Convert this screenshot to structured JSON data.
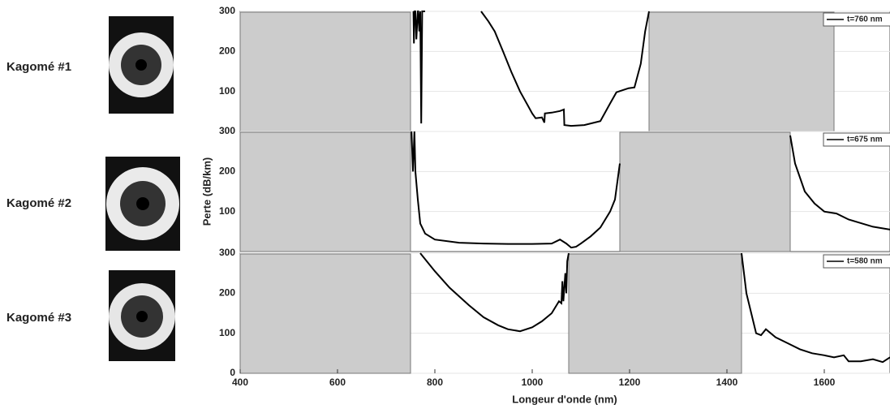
{
  "chart_data": [
    {
      "type": "line",
      "fiber_label": "Kagomé #1",
      "xlim": [
        400,
        1735
      ],
      "ylim": [
        0,
        300
      ],
      "yticks": [
        100,
        200,
        300
      ],
      "shaded_regions": [
        [
          400,
          750
        ],
        [
          1240,
          1620
        ]
      ],
      "series": [
        {
          "name": "t=760 nm",
          "color": "#000000",
          "x": [
            756,
            757,
            758,
            760,
            762,
            765,
            766,
            768,
            770,
            772,
            774,
            776,
            780,
            null,
            895,
            910,
            923,
            940,
            957,
            975,
            990,
            1000,
            1007,
            1020,
            1025,
            1026,
            1040,
            1057,
            1065,
            1066,
            1080,
            1107,
            1140,
            1160,
            1173,
            1198,
            1210,
            1223,
            1232,
            1240
          ],
          "values": [
            300,
            220,
            300,
            300,
            230,
            300,
            300,
            250,
            300,
            20,
            300,
            300,
            300,
            null,
            300,
            275,
            250,
            200,
            149,
            100,
            67,
            45,
            33,
            35,
            22,
            45,
            47,
            51,
            55,
            16,
            14,
            16,
            26,
            70,
            98,
            108,
            110,
            169,
            250,
            300
          ]
        }
      ]
    },
    {
      "type": "line",
      "fiber_label": "Kagomé #2",
      "ylabel": "Perte (dB/km)",
      "xlim": [
        400,
        1735
      ],
      "ylim": [
        0,
        300
      ],
      "yticks": [
        100,
        200,
        300
      ],
      "shaded_regions": [
        [
          400,
          750
        ],
        [
          1180,
          1530
        ]
      ],
      "series": [
        {
          "name": "t=675 nm",
          "color": "#000000",
          "x": [
            752,
            755,
            758,
            760,
            765,
            770,
            780,
            800,
            850,
            900,
            950,
            1000,
            1040,
            1057,
            1070,
            1080,
            1090,
            1100,
            1120,
            1140,
            1160,
            1170,
            1180,
            null,
            1530,
            1540,
            1560,
            1580,
            1600,
            1625,
            1650,
            1700,
            1735
          ],
          "values": [
            300,
            200,
            300,
            200,
            130,
            70,
            45,
            30,
            22,
            20,
            19,
            19,
            20,
            30,
            20,
            10,
            12,
            20,
            38,
            60,
            100,
            130,
            220,
            null,
            290,
            220,
            150,
            120,
            100,
            95,
            80,
            62,
            55
          ]
        }
      ]
    },
    {
      "type": "line",
      "fiber_label": "Kagomé #3",
      "xlabel": "Longeur d'onde (nm)",
      "xlim": [
        400,
        1735
      ],
      "ylim": [
        0,
        300
      ],
      "yticks": [
        0,
        100,
        200,
        300
      ],
      "xticks": [
        400,
        600,
        800,
        1000,
        1200,
        1400,
        1600
      ],
      "shaded_regions": [
        [
          400,
          750
        ],
        [
          1075,
          1430
        ]
      ],
      "series": [
        {
          "name": "t=580 nm",
          "color": "#000000",
          "x": [
            770,
            800,
            830,
            870,
            900,
            930,
            950,
            975,
            1000,
            1020,
            1040,
            1055,
            1060,
            1062,
            1064,
            1068,
            1070,
            1072,
            1075,
            null,
            1430,
            1440,
            1450,
            1460,
            1470,
            1480,
            1500,
            1525,
            1550,
            1575,
            1600,
            1620,
            1640,
            1650,
            1675,
            1700,
            1720,
            1735
          ],
          "values": [
            300,
            255,
            214,
            170,
            140,
            120,
            110,
            105,
            115,
            130,
            150,
            180,
            175,
            230,
            180,
            250,
            200,
            280,
            300,
            null,
            300,
            200,
            150,
            100,
            95,
            110,
            90,
            75,
            60,
            50,
            45,
            40,
            45,
            30,
            30,
            35,
            28,
            40
          ]
        }
      ]
    }
  ]
}
